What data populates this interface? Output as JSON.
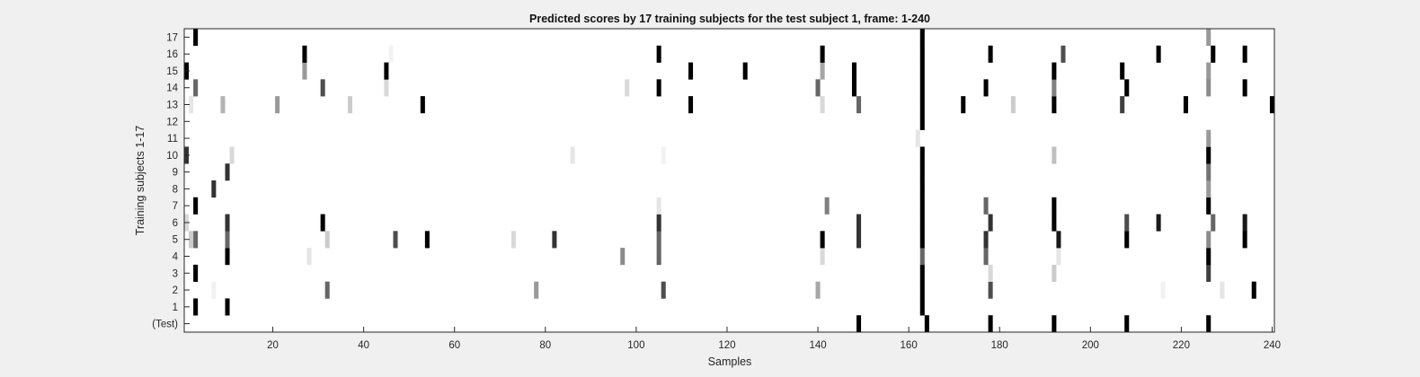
{
  "chart_data": {
    "type": "heatmap",
    "title": "Predicted scores by 17 training subjects for the test subject 1, frame: 1-240",
    "xlabel": "Samples",
    "ylabel": "Training subjects 1-17",
    "xlim": [
      0.5,
      240.5
    ],
    "x_ticks": [
      20,
      40,
      60,
      80,
      100,
      120,
      140,
      160,
      180,
      200,
      220,
      240
    ],
    "y_tick_labels": [
      "(Test)",
      "1",
      "2",
      "3",
      "4",
      "5",
      "6",
      "7",
      "8",
      "9",
      "10",
      "11",
      "12",
      "13",
      "14",
      "15",
      "16",
      "17"
    ],
    "colormap": "gray, 1 = black, 0 = white",
    "background": "#ffffff",
    "rows": [
      {
        "label": "(Test)",
        "cells": [
          [
            149,
            1
          ],
          [
            164,
            1
          ],
          [
            178,
            1
          ],
          [
            192,
            1
          ],
          [
            208,
            1
          ],
          [
            226,
            1
          ]
        ]
      },
      {
        "label": "1",
        "cells": [
          [
            3,
            1
          ],
          [
            10,
            1
          ],
          [
            163,
            1
          ]
        ]
      },
      {
        "label": "2",
        "cells": [
          [
            7,
            0.05
          ],
          [
            32,
            0.6
          ],
          [
            78,
            0.4
          ],
          [
            106,
            0.7
          ],
          [
            140,
            0.35
          ],
          [
            163,
            1
          ],
          [
            178,
            0.7
          ],
          [
            216,
            0.05
          ],
          [
            229,
            0.1
          ],
          [
            236,
            1
          ]
        ]
      },
      {
        "label": "3",
        "cells": [
          [
            3,
            1
          ],
          [
            163,
            1
          ],
          [
            178,
            0.15
          ],
          [
            192,
            0.2
          ],
          [
            226,
            0.75
          ]
        ]
      },
      {
        "label": "4",
        "cells": [
          [
            10,
            1
          ],
          [
            28,
            0.1
          ],
          [
            97,
            0.45
          ],
          [
            105,
            0.6
          ],
          [
            141,
            0.15
          ],
          [
            163,
            0.6
          ],
          [
            177,
            0.6
          ],
          [
            193,
            0.1
          ],
          [
            226,
            1
          ]
        ]
      },
      {
        "label": "5",
        "cells": [
          [
            2,
            0.2
          ],
          [
            3,
            0.6
          ],
          [
            10,
            0.6
          ],
          [
            32,
            0.2
          ],
          [
            47,
            0.7
          ],
          [
            54,
            1
          ],
          [
            73,
            0.15
          ],
          [
            82,
            0.8
          ],
          [
            105,
            0.6
          ],
          [
            141,
            1
          ],
          [
            149,
            0.8
          ],
          [
            163,
            1
          ],
          [
            177,
            0.8
          ],
          [
            193,
            0.9
          ],
          [
            208,
            1
          ],
          [
            226,
            0.45
          ],
          [
            234,
            1
          ]
        ]
      },
      {
        "label": "6",
        "cells": [
          [
            1,
            0.15
          ],
          [
            10,
            0.8
          ],
          [
            31,
            1
          ],
          [
            105,
            0.8
          ],
          [
            149,
            0.8
          ],
          [
            163,
            1
          ],
          [
            178,
            0.8
          ],
          [
            192,
            1
          ],
          [
            208,
            0.7
          ],
          [
            215,
            0.9
          ],
          [
            227,
            0.6
          ],
          [
            234,
            0.9
          ]
        ]
      },
      {
        "label": "7",
        "cells": [
          [
            3,
            1
          ],
          [
            105,
            0.1
          ],
          [
            142,
            0.5
          ],
          [
            163,
            1
          ],
          [
            177,
            0.6
          ],
          [
            192,
            1
          ],
          [
            226,
            1
          ]
        ]
      },
      {
        "label": "8",
        "cells": [
          [
            7,
            0.8
          ],
          [
            163,
            1
          ],
          [
            226,
            0.4
          ]
        ]
      },
      {
        "label": "9",
        "cells": [
          [
            10,
            0.8
          ],
          [
            163,
            1
          ],
          [
            226,
            0.55
          ]
        ]
      },
      {
        "label": "10",
        "cells": [
          [
            1,
            0.8
          ],
          [
            11,
            0.15
          ],
          [
            86,
            0.1
          ],
          [
            106,
            0.05
          ],
          [
            163,
            1
          ],
          [
            192,
            0.25
          ],
          [
            226,
            1
          ]
        ]
      },
      {
        "label": "11",
        "cells": [
          [
            162,
            0.1
          ],
          [
            226,
            0.4
          ]
        ]
      },
      {
        "label": "12",
        "cells": [
          [
            163,
            1
          ]
        ]
      },
      {
        "label": "13",
        "cells": [
          [
            2,
            0.1
          ],
          [
            9,
            0.3
          ],
          [
            21,
            0.4
          ],
          [
            37,
            0.2
          ],
          [
            53,
            1
          ],
          [
            112,
            1
          ],
          [
            141,
            0.15
          ],
          [
            149,
            0.6
          ],
          [
            163,
            1
          ],
          [
            172,
            1
          ],
          [
            183,
            0.2
          ],
          [
            192,
            1
          ],
          [
            207,
            0.75
          ],
          [
            221,
            1
          ],
          [
            240,
            1
          ]
        ]
      },
      {
        "label": "14",
        "cells": [
          [
            3,
            0.6
          ],
          [
            31,
            0.7
          ],
          [
            45,
            0.15
          ],
          [
            98,
            0.15
          ],
          [
            105,
            1
          ],
          [
            140,
            0.6
          ],
          [
            148,
            1
          ],
          [
            163,
            1
          ],
          [
            177,
            1
          ],
          [
            192,
            0.5
          ],
          [
            208,
            1
          ],
          [
            226,
            0.45
          ],
          [
            234,
            1
          ]
        ]
      },
      {
        "label": "15",
        "cells": [
          [
            1,
            1
          ],
          [
            27,
            0.4
          ],
          [
            45,
            1
          ],
          [
            112,
            1
          ],
          [
            124,
            1
          ],
          [
            141,
            0.35
          ],
          [
            148,
            1
          ],
          [
            163,
            1
          ],
          [
            192,
            1
          ],
          [
            207,
            1
          ],
          [
            226,
            0.4
          ]
        ]
      },
      {
        "label": "16",
        "cells": [
          [
            27,
            1
          ],
          [
            46,
            0.05
          ],
          [
            105,
            1
          ],
          [
            141,
            1
          ],
          [
            163,
            1
          ],
          [
            178,
            1
          ],
          [
            194,
            0.7
          ],
          [
            215,
            1
          ],
          [
            227,
            1
          ],
          [
            234,
            1
          ]
        ]
      },
      {
        "label": "17",
        "cells": [
          [
            3,
            1
          ],
          [
            163,
            1
          ],
          [
            226,
            0.4
          ]
        ]
      }
    ]
  }
}
